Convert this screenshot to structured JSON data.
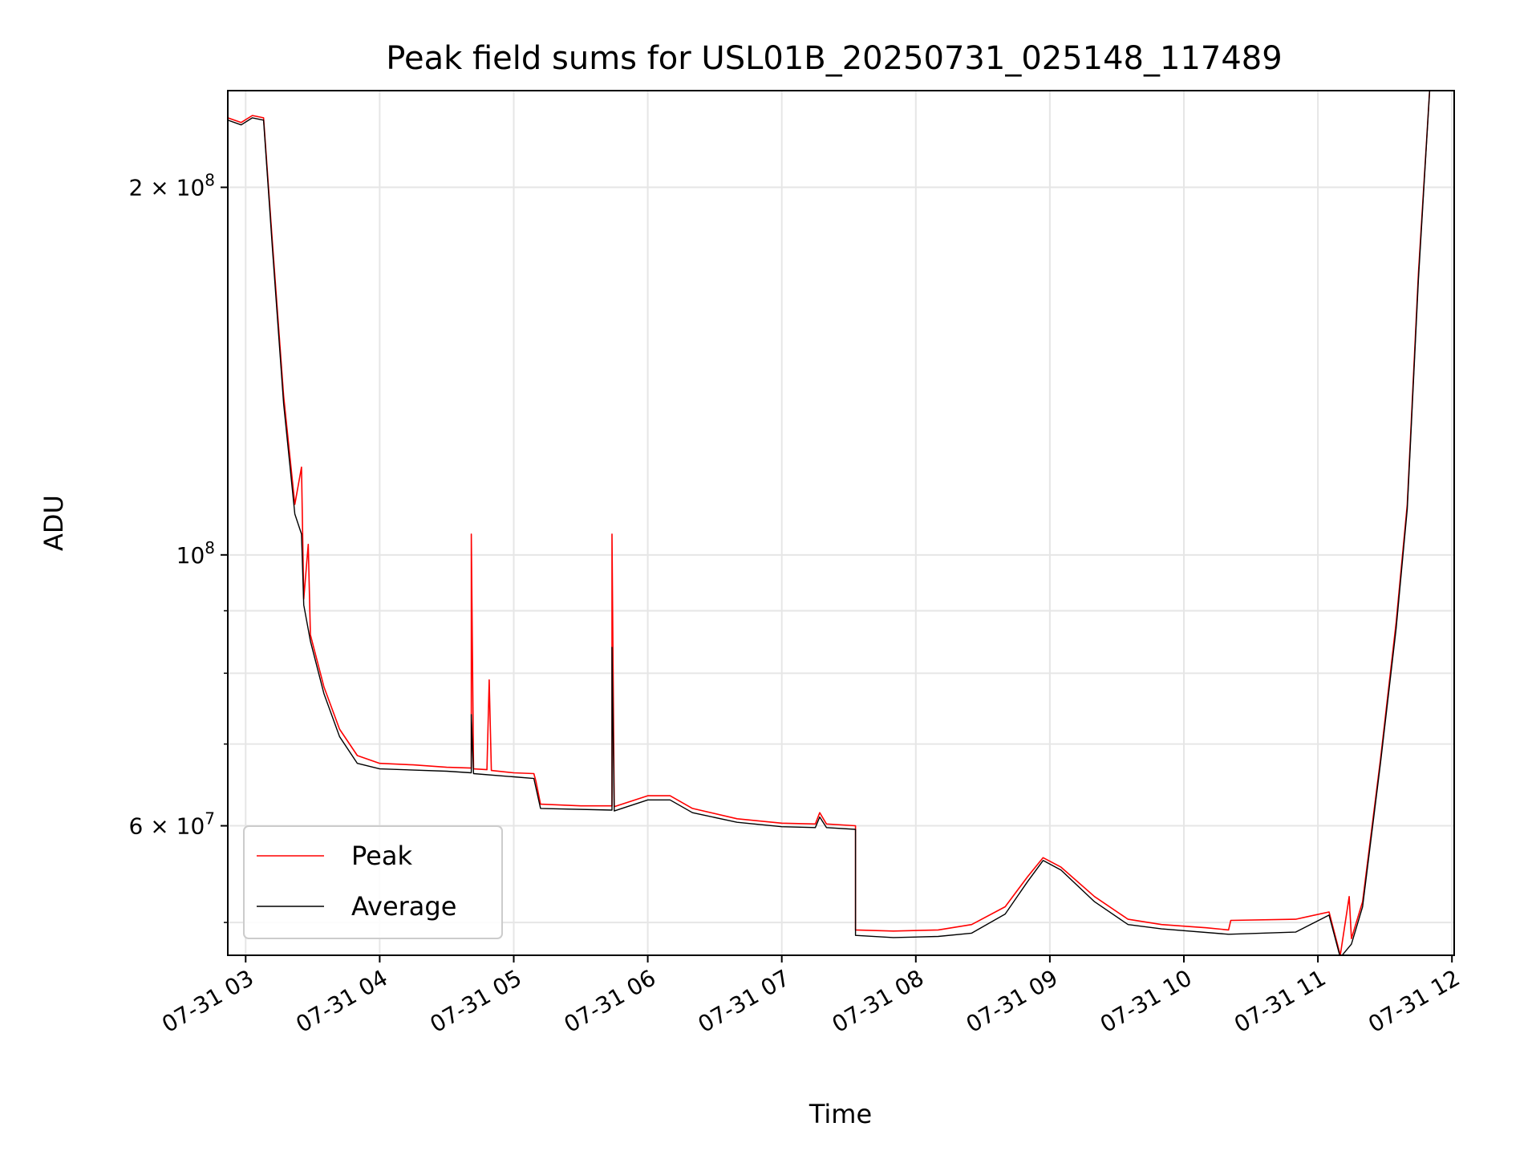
{
  "chart_data": {
    "type": "line",
    "title": "Peak field sums for USL01B_20250731_025148_117489",
    "xlabel": "Time",
    "ylabel": "ADU",
    "yscale": "log",
    "grid": true,
    "legend_position": "lower-left",
    "xlim": [
      "2025-07-31 02:52",
      "2025-07-31 12:01"
    ],
    "ylim": [
      47000000,
      240000000
    ],
    "x_ticks": [
      {
        "t": "2025-07-31 03:00",
        "label": "07-31 03"
      },
      {
        "t": "2025-07-31 04:00",
        "label": "07-31 04"
      },
      {
        "t": "2025-07-31 05:00",
        "label": "07-31 05"
      },
      {
        "t": "2025-07-31 06:00",
        "label": "07-31 06"
      },
      {
        "t": "2025-07-31 07:00",
        "label": "07-31 07"
      },
      {
        "t": "2025-07-31 08:00",
        "label": "07-31 08"
      },
      {
        "t": "2025-07-31 09:00",
        "label": "07-31 09"
      },
      {
        "t": "2025-07-31 10:00",
        "label": "07-31 10"
      },
      {
        "t": "2025-07-31 11:00",
        "label": "07-31 11"
      },
      {
        "t": "2025-07-31 12:00",
        "label": "07-31 12"
      }
    ],
    "y_ticks_major": [
      {
        "v": 200000000,
        "base": "2 × 10",
        "exp": "8"
      },
      {
        "v": 100000000,
        "base": "10",
        "exp": "8"
      },
      {
        "v": 60000000,
        "base": "6 × 10",
        "exp": "7"
      }
    ],
    "y_ticks_minor": [
      50000000,
      70000000,
      80000000,
      90000000
    ],
    "series": [
      {
        "name": "Peak",
        "color": "#ff0000",
        "points": [
          [
            "2025-07-31 02:52",
            228000000
          ],
          [
            "2025-07-31 02:58",
            226000000
          ],
          [
            "2025-07-31 03:03",
            229000000
          ],
          [
            "2025-07-31 03:08",
            228000000
          ],
          [
            "2025-07-31 03:12",
            180000000
          ],
          [
            "2025-07-31 03:17",
            135000000
          ],
          [
            "2025-07-31 03:22",
            110000000
          ],
          [
            "2025-07-31 03:25",
            118000000
          ],
          [
            "2025-07-31 03:26",
            92000000
          ],
          [
            "2025-07-31 03:28",
            102000000
          ],
          [
            "2025-07-31 03:29",
            86000000
          ],
          [
            "2025-07-31 03:35",
            78000000
          ],
          [
            "2025-07-31 03:42",
            72000000
          ],
          [
            "2025-07-31 03:50",
            68500000
          ],
          [
            "2025-07-31 04:00",
            67500000
          ],
          [
            "2025-07-31 04:15",
            67300000
          ],
          [
            "2025-07-31 04:30",
            67000000
          ],
          [
            "2025-07-31 04:41",
            66900000
          ],
          [
            "2025-07-31 04:41",
            104000000
          ],
          [
            "2025-07-31 04:42",
            66800000
          ],
          [
            "2025-07-31 04:48",
            66700000
          ],
          [
            "2025-07-31 04:49",
            79000000
          ],
          [
            "2025-07-31 04:50",
            66600000
          ],
          [
            "2025-07-31 05:00",
            66300000
          ],
          [
            "2025-07-31 05:09",
            66200000
          ],
          [
            "2025-07-31 05:10",
            65200000
          ],
          [
            "2025-07-31 05:12",
            62500000
          ],
          [
            "2025-07-31 05:30",
            62300000
          ],
          [
            "2025-07-31 05:44",
            62300000
          ],
          [
            "2025-07-31 05:44",
            104000000
          ],
          [
            "2025-07-31 05:45",
            62200000
          ],
          [
            "2025-07-31 06:00",
            63500000
          ],
          [
            "2025-07-31 06:10",
            63500000
          ],
          [
            "2025-07-31 06:20",
            62000000
          ],
          [
            "2025-07-31 06:40",
            60800000
          ],
          [
            "2025-07-31 07:00",
            60300000
          ],
          [
            "2025-07-31 07:15",
            60200000
          ],
          [
            "2025-07-31 07:17",
            61500000
          ],
          [
            "2025-07-31 07:20",
            60200000
          ],
          [
            "2025-07-31 07:33",
            60000000
          ],
          [
            "2025-07-31 07:33",
            49300000
          ],
          [
            "2025-07-31 07:50",
            49200000
          ],
          [
            "2025-07-31 08:10",
            49300000
          ],
          [
            "2025-07-31 08:25",
            49800000
          ],
          [
            "2025-07-31 08:40",
            51500000
          ],
          [
            "2025-07-31 08:50",
            54500000
          ],
          [
            "2025-07-31 08:57",
            56500000
          ],
          [
            "2025-07-31 09:05",
            55500000
          ],
          [
            "2025-07-31 09:20",
            52500000
          ],
          [
            "2025-07-31 09:35",
            50300000
          ],
          [
            "2025-07-31 09:50",
            49800000
          ],
          [
            "2025-07-31 10:10",
            49500000
          ],
          [
            "2025-07-31 10:20",
            49300000
          ],
          [
            "2025-07-31 10:21",
            50200000
          ],
          [
            "2025-07-31 10:50",
            50300000
          ],
          [
            "2025-07-31 11:05",
            51000000
          ],
          [
            "2025-07-31 11:10",
            47000000
          ],
          [
            "2025-07-31 11:14",
            52500000
          ],
          [
            "2025-07-31 11:15",
            48500000
          ],
          [
            "2025-07-31 11:20",
            52000000
          ],
          [
            "2025-07-31 11:28",
            68000000
          ],
          [
            "2025-07-31 11:35",
            88000000
          ],
          [
            "2025-07-31 11:40",
            110000000
          ],
          [
            "2025-07-31 11:45",
            170000000
          ],
          [
            "2025-07-31 11:50",
            240000000
          ]
        ]
      },
      {
        "name": "Average",
        "color": "#000000",
        "points": [
          [
            "2025-07-31 02:52",
            227000000
          ],
          [
            "2025-07-31 02:58",
            225000000
          ],
          [
            "2025-07-31 03:03",
            228000000
          ],
          [
            "2025-07-31 03:08",
            227000000
          ],
          [
            "2025-07-31 03:12",
            178000000
          ],
          [
            "2025-07-31 03:17",
            133000000
          ],
          [
            "2025-07-31 03:22",
            108000000
          ],
          [
            "2025-07-31 03:25",
            104000000
          ],
          [
            "2025-07-31 03:26",
            91000000
          ],
          [
            "2025-07-31 03:29",
            85000000
          ],
          [
            "2025-07-31 03:35",
            77000000
          ],
          [
            "2025-07-31 03:42",
            71000000
          ],
          [
            "2025-07-31 03:50",
            67500000
          ],
          [
            "2025-07-31 04:00",
            66800000
          ],
          [
            "2025-07-31 04:30",
            66500000
          ],
          [
            "2025-07-31 04:41",
            66300000
          ],
          [
            "2025-07-31 04:41",
            74000000
          ],
          [
            "2025-07-31 04:42",
            66200000
          ],
          [
            "2025-07-31 05:00",
            65800000
          ],
          [
            "2025-07-31 05:09",
            65600000
          ],
          [
            "2025-07-31 05:12",
            62000000
          ],
          [
            "2025-07-31 05:44",
            61800000
          ],
          [
            "2025-07-31 05:44",
            84000000
          ],
          [
            "2025-07-31 05:45",
            61700000
          ],
          [
            "2025-07-31 06:00",
            63000000
          ],
          [
            "2025-07-31 06:10",
            63000000
          ],
          [
            "2025-07-31 06:20",
            61500000
          ],
          [
            "2025-07-31 06:40",
            60400000
          ],
          [
            "2025-07-31 07:00",
            59900000
          ],
          [
            "2025-07-31 07:15",
            59800000
          ],
          [
            "2025-07-31 07:17",
            61000000
          ],
          [
            "2025-07-31 07:20",
            59800000
          ],
          [
            "2025-07-31 07:33",
            59600000
          ],
          [
            "2025-07-31 07:33",
            48800000
          ],
          [
            "2025-07-31 07:50",
            48600000
          ],
          [
            "2025-07-31 08:10",
            48700000
          ],
          [
            "2025-07-31 08:25",
            49000000
          ],
          [
            "2025-07-31 08:40",
            50800000
          ],
          [
            "2025-07-31 08:50",
            54000000
          ],
          [
            "2025-07-31 08:57",
            56200000
          ],
          [
            "2025-07-31 09:05",
            55200000
          ],
          [
            "2025-07-31 09:20",
            52000000
          ],
          [
            "2025-07-31 09:35",
            49800000
          ],
          [
            "2025-07-31 09:50",
            49400000
          ],
          [
            "2025-07-31 10:20",
            48900000
          ],
          [
            "2025-07-31 10:50",
            49100000
          ],
          [
            "2025-07-31 11:05",
            50700000
          ],
          [
            "2025-07-31 11:10",
            46800000
          ],
          [
            "2025-07-31 11:15",
            48000000
          ],
          [
            "2025-07-31 11:20",
            51500000
          ],
          [
            "2025-07-31 11:28",
            67500000
          ],
          [
            "2025-07-31 11:35",
            87000000
          ],
          [
            "2025-07-31 11:40",
            109000000
          ],
          [
            "2025-07-31 11:45",
            168000000
          ],
          [
            "2025-07-31 11:50",
            240000000
          ]
        ]
      }
    ],
    "legend": {
      "entries": [
        {
          "label": "Peak",
          "color": "#ff0000"
        },
        {
          "label": "Average",
          "color": "#000000"
        }
      ]
    }
  }
}
